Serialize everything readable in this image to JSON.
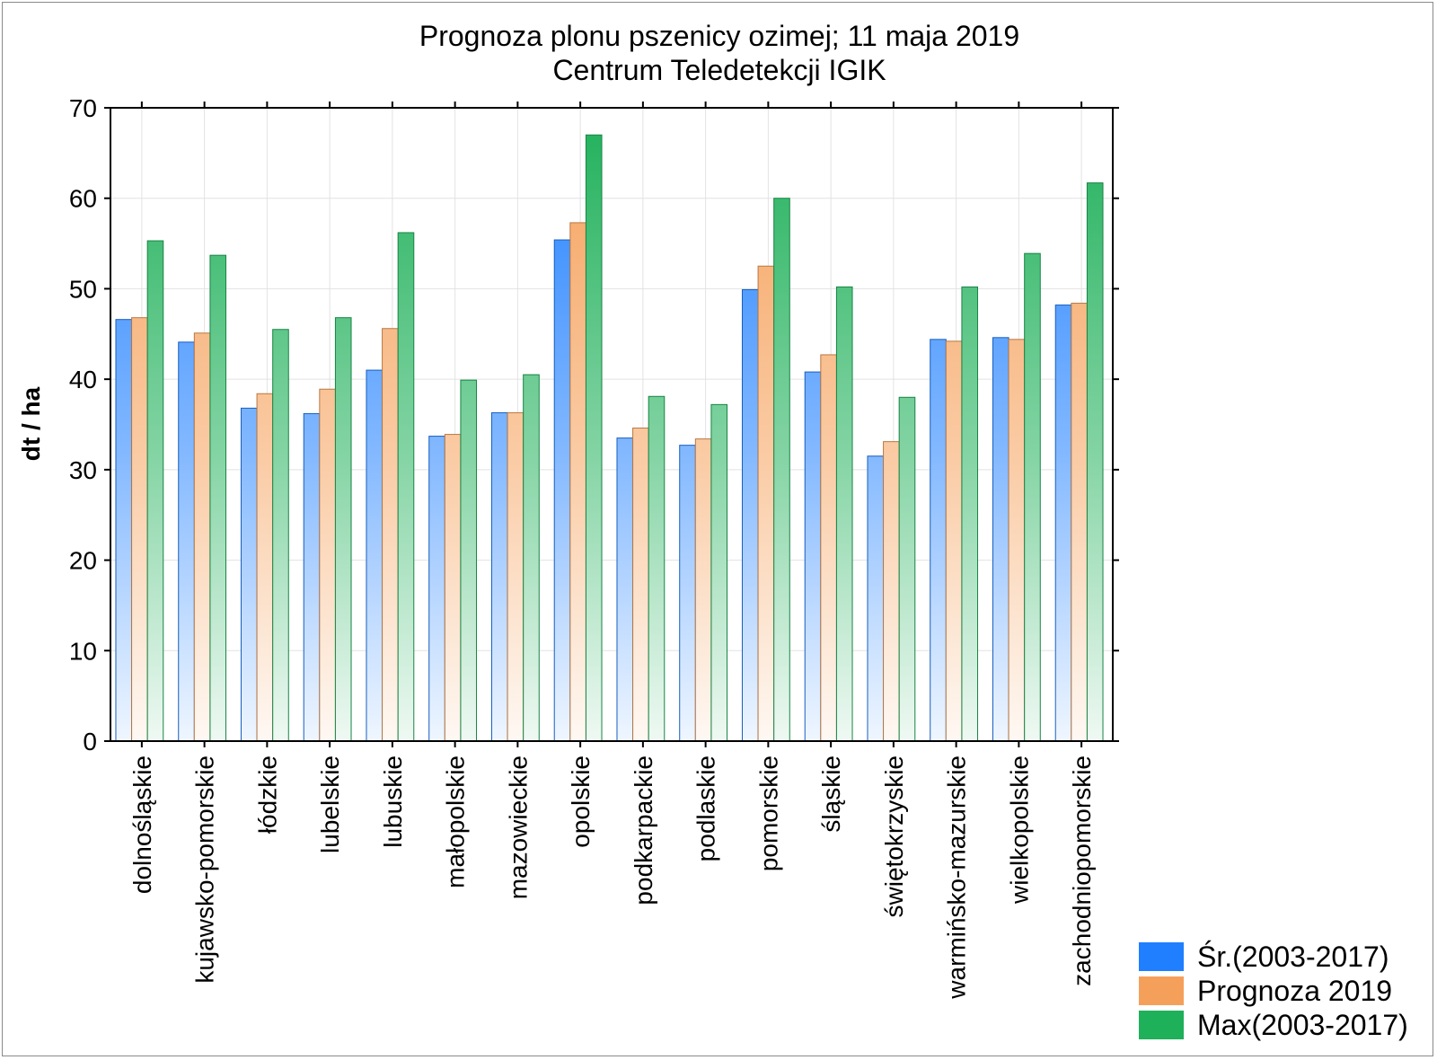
{
  "chart_data": {
    "type": "bar",
    "title": "Prognoza plonu pszenicy ozimej; 11 maja 2019",
    "subtitle": "Centrum Teledetekcji IGIK",
    "xlabel": "",
    "ylabel": "dt / ha",
    "ylim": [
      0,
      70
    ],
    "yticks": [
      0,
      10,
      20,
      30,
      40,
      50,
      60,
      70
    ],
    "grid": true,
    "legend_position": "bottom-right",
    "categories": [
      "dolnośląskie",
      "kujawsko-pomorskie",
      "łódzkie",
      "lubelskie",
      "lubuskie",
      "małopolskie",
      "mazowieckie",
      "opolskie",
      "podkarpackie",
      "podlaskie",
      "pomorskie",
      "śląskie",
      "świętokrzyskie",
      "warmińsko-mazurskie",
      "wielkopolskie",
      "zachodniopomorskie"
    ],
    "series": [
      {
        "name": "Śr.(2003-2017)",
        "color": "#1f7fff",
        "values": [
          46.6,
          44.1,
          36.8,
          36.2,
          41.0,
          33.7,
          36.3,
          55.4,
          33.5,
          32.7,
          49.9,
          40.8,
          31.5,
          44.4,
          44.6,
          48.2
        ]
      },
      {
        "name": "Prognoza 2019",
        "color": "#f5a05a",
        "values": [
          46.8,
          45.1,
          38.4,
          38.9,
          45.6,
          33.9,
          36.3,
          57.3,
          34.6,
          33.4,
          52.5,
          42.7,
          33.1,
          44.2,
          44.4,
          48.4
        ]
      },
      {
        "name": "Max(2003-2017)",
        "color": "#1fb05a",
        "values": [
          55.3,
          53.7,
          45.5,
          46.8,
          56.2,
          39.9,
          40.5,
          67.0,
          38.1,
          37.2,
          60.0,
          50.2,
          38.0,
          50.2,
          53.9,
          61.7
        ]
      }
    ]
  }
}
